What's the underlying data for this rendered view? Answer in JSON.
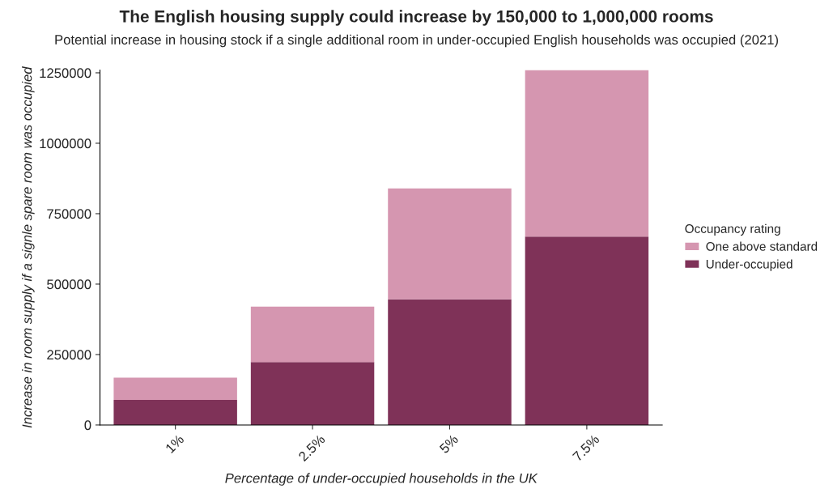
{
  "chart_data": {
    "type": "bar",
    "title": "The English housing supply could increase by 150,000 to 1,000,000 rooms",
    "subtitle": "Potential increase in housing stock if a single additional room in under-occupied English households was occupied (2021)",
    "xlabel": "Percentage of under-occupied households in the UK",
    "ylabel": "Increase in room supply if a signle spare room was occupied",
    "legend_title": "Occupancy rating",
    "categories": [
      "1%",
      "2.5%",
      "5%",
      "7.5%"
    ],
    "stacked": true,
    "series": [
      {
        "name": "Under-occupied",
        "color": "#7f3258",
        "values": [
          89000,
          223000,
          446000,
          669000
        ]
      },
      {
        "name": "One above standard",
        "color": "#d596b0",
        "values": [
          79000,
          197000,
          394000,
          591000
        ]
      }
    ],
    "ylim": [
      0,
      1260000
    ],
    "yticks": [
      0,
      250000,
      500000,
      750000,
      1000000,
      1250000
    ],
    "grid": false,
    "legend": "right"
  }
}
